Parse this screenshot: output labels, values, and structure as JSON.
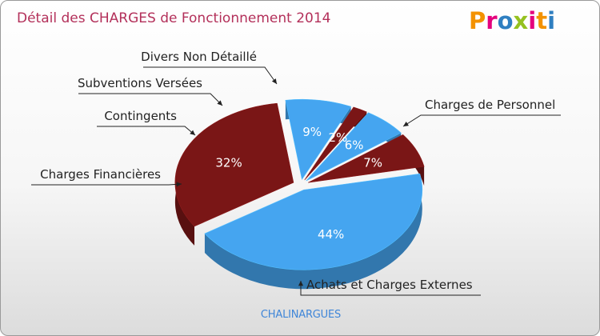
{
  "title": "Détail des CHARGES de Fonctionnement 2014",
  "logo": {
    "text": "Proxiti",
    "letters": [
      "P",
      "r",
      "o",
      "x",
      "i",
      "t",
      "i"
    ],
    "colors": [
      "#f39200",
      "#e4007d",
      "#2f7fc1",
      "#95c11f",
      "#e4007d",
      "#f39200",
      "#2f7fc1"
    ]
  },
  "caption": "CHALINARGUES",
  "chart_data": {
    "type": "pie",
    "title": "Détail des CHARGES de Fonctionnement 2014",
    "slices": [
      {
        "label": "Charges de Personnel",
        "value": 32,
        "display": "32%",
        "color": "#7a1616"
      },
      {
        "label": "Achats et Charges Externes",
        "value": 44,
        "display": "44%",
        "color": "#45a5f0"
      },
      {
        "label": "Charges Financières",
        "value": 7,
        "display": "7%",
        "color": "#7a1616"
      },
      {
        "label": "Contingents",
        "value": 6,
        "display": "6%",
        "color": "#45a5f0"
      },
      {
        "label": "Subventions Versées",
        "value": 2,
        "display": "2%",
        "color": "#7a1616"
      },
      {
        "label": "Divers Non Détaillé",
        "value": 9,
        "display": "9%",
        "color": "#45a5f0"
      }
    ]
  }
}
